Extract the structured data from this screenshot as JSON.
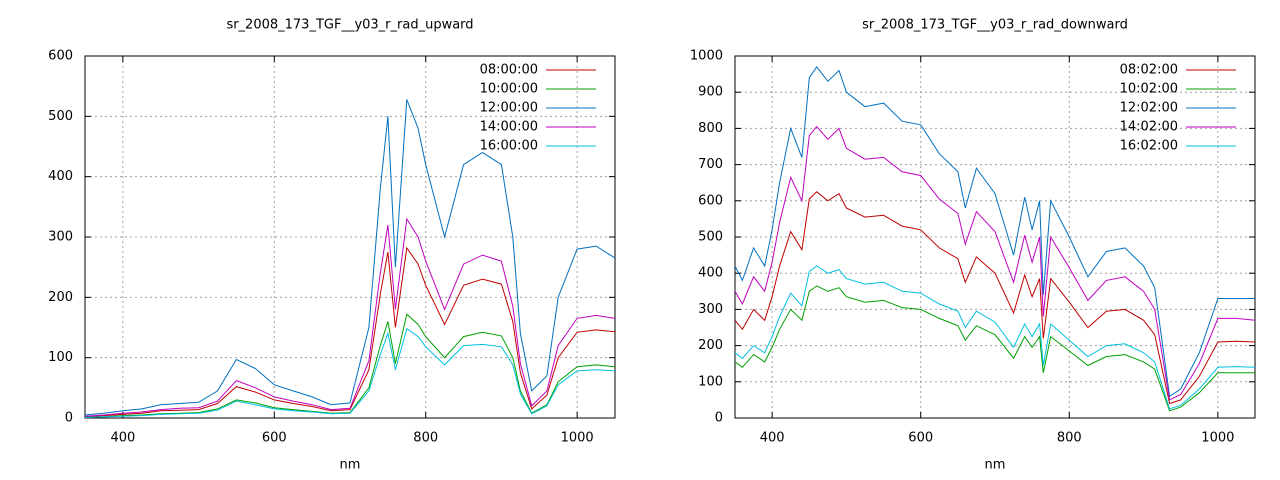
{
  "chart_data": [
    {
      "type": "line",
      "title": "sr_2008_173_TGF__y03_r_rad_upward",
      "x_label": "nm",
      "xlim": [
        350,
        1050
      ],
      "xticks": [
        400,
        600,
        800,
        1000
      ],
      "ylim": [
        0,
        600
      ],
      "yticks": [
        0,
        100,
        200,
        300,
        400,
        500,
        600
      ],
      "grid": true,
      "legend": "top-right",
      "x": [
        350,
        375,
        400,
        425,
        450,
        475,
        500,
        525,
        550,
        575,
        600,
        625,
        650,
        675,
        700,
        725,
        740,
        750,
        760,
        775,
        790,
        800,
        825,
        850,
        875,
        900,
        915,
        925,
        940,
        960,
        975,
        1000,
        1025,
        1050
      ],
      "series": [
        {
          "name": "08:00:00",
          "color": "#c00000",
          "values": [
            2,
            4,
            6,
            8,
            12,
            13,
            14,
            24,
            52,
            43,
            30,
            24,
            19,
            12,
            14,
            80,
            205,
            275,
            150,
            282,
            255,
            220,
            155,
            220,
            230,
            222,
            160,
            75,
            15,
            38,
            100,
            142,
            146,
            143
          ]
        },
        {
          "name": "10:00:00",
          "color": "#00a000",
          "values": [
            1,
            2,
            4,
            5,
            7,
            8,
            9,
            15,
            30,
            25,
            17,
            14,
            11,
            8,
            9,
            50,
            120,
            160,
            90,
            172,
            155,
            135,
            100,
            135,
            142,
            136,
            100,
            45,
            8,
            22,
            60,
            85,
            88,
            85
          ]
        },
        {
          "name": "12:00:00",
          "color": "#0070c0",
          "values": [
            5,
            8,
            12,
            15,
            22,
            24,
            26,
            45,
            97,
            82,
            55,
            45,
            35,
            22,
            25,
            150,
            380,
            500,
            250,
            528,
            480,
            420,
            300,
            420,
            440,
            420,
            300,
            140,
            45,
            70,
            200,
            280,
            285,
            265
          ]
        },
        {
          "name": "14:00:00",
          "color": "#c000c0",
          "values": [
            3,
            5,
            8,
            10,
            14,
            16,
            17,
            28,
            62,
            50,
            35,
            28,
            22,
            14,
            16,
            95,
            240,
            320,
            180,
            330,
            300,
            260,
            180,
            255,
            270,
            260,
            185,
            90,
            20,
            45,
            120,
            165,
            170,
            165
          ]
        },
        {
          "name": "16:00:00",
          "color": "#00c0e0",
          "values": [
            1,
            2,
            3,
            4,
            6,
            7,
            8,
            13,
            28,
            22,
            15,
            12,
            10,
            7,
            8,
            45,
            105,
            140,
            80,
            148,
            135,
            118,
            88,
            120,
            122,
            118,
            88,
            40,
            7,
            20,
            55,
            78,
            80,
            78
          ]
        }
      ]
    },
    {
      "type": "line",
      "title": "sr_2008_173_TGF__y03_r_rad_downward",
      "x_label": "nm",
      "xlim": [
        350,
        1050
      ],
      "xticks": [
        400,
        600,
        800,
        1000
      ],
      "ylim": [
        0,
        1000
      ],
      "yticks": [
        0,
        100,
        200,
        300,
        400,
        500,
        600,
        700,
        800,
        900,
        1000
      ],
      "grid": true,
      "legend": "top-right",
      "x": [
        350,
        360,
        375,
        390,
        400,
        410,
        425,
        440,
        450,
        460,
        475,
        490,
        500,
        525,
        550,
        575,
        600,
        625,
        650,
        660,
        675,
        700,
        725,
        740,
        750,
        760,
        765,
        775,
        800,
        825,
        850,
        875,
        900,
        915,
        935,
        950,
        975,
        1000,
        1025,
        1050
      ],
      "series": [
        {
          "name": "08:02:00",
          "color": "#c00000",
          "values": [
            270,
            245,
            300,
            270,
            335,
            420,
            515,
            465,
            605,
            625,
            600,
            620,
            580,
            555,
            560,
            530,
            520,
            470,
            440,
            375,
            445,
            400,
            290,
            395,
            335,
            385,
            220,
            385,
            320,
            250,
            295,
            300,
            270,
            230,
            40,
            50,
            115,
            210,
            212,
            210
          ]
        },
        {
          "name": "10:02:00",
          "color": "#00a000",
          "values": [
            155,
            140,
            175,
            155,
            195,
            245,
            300,
            270,
            350,
            365,
            350,
            360,
            335,
            320,
            325,
            305,
            300,
            275,
            255,
            215,
            255,
            230,
            165,
            225,
            195,
            225,
            125,
            225,
            185,
            145,
            170,
            175,
            155,
            135,
            20,
            30,
            70,
            125,
            125,
            125
          ]
        },
        {
          "name": "12:02:00",
          "color": "#0070c0",
          "values": [
            420,
            380,
            470,
            420,
            520,
            650,
            800,
            720,
            940,
            970,
            930,
            960,
            900,
            860,
            870,
            820,
            810,
            730,
            680,
            580,
            690,
            620,
            450,
            610,
            520,
            600,
            340,
            600,
            500,
            390,
            460,
            470,
            420,
            360,
            60,
            80,
            180,
            330,
            330,
            330
          ]
        },
        {
          "name": "14:02:00",
          "color": "#c000c0",
          "values": [
            350,
            315,
            390,
            350,
            430,
            540,
            665,
            600,
            780,
            805,
            770,
            800,
            745,
            715,
            720,
            680,
            670,
            605,
            565,
            480,
            570,
            515,
            375,
            505,
            430,
            500,
            280,
            500,
            415,
            325,
            380,
            390,
            350,
            300,
            50,
            65,
            150,
            275,
            275,
            270
          ]
        },
        {
          "name": "16:02:00",
          "color": "#00c0e0",
          "values": [
            180,
            165,
            200,
            180,
            225,
            280,
            345,
            310,
            405,
            420,
            400,
            410,
            385,
            370,
            375,
            350,
            345,
            315,
            295,
            250,
            295,
            265,
            195,
            260,
            225,
            260,
            145,
            260,
            215,
            170,
            200,
            205,
            180,
            155,
            25,
            35,
            80,
            140,
            142,
            140
          ]
        }
      ]
    }
  ]
}
